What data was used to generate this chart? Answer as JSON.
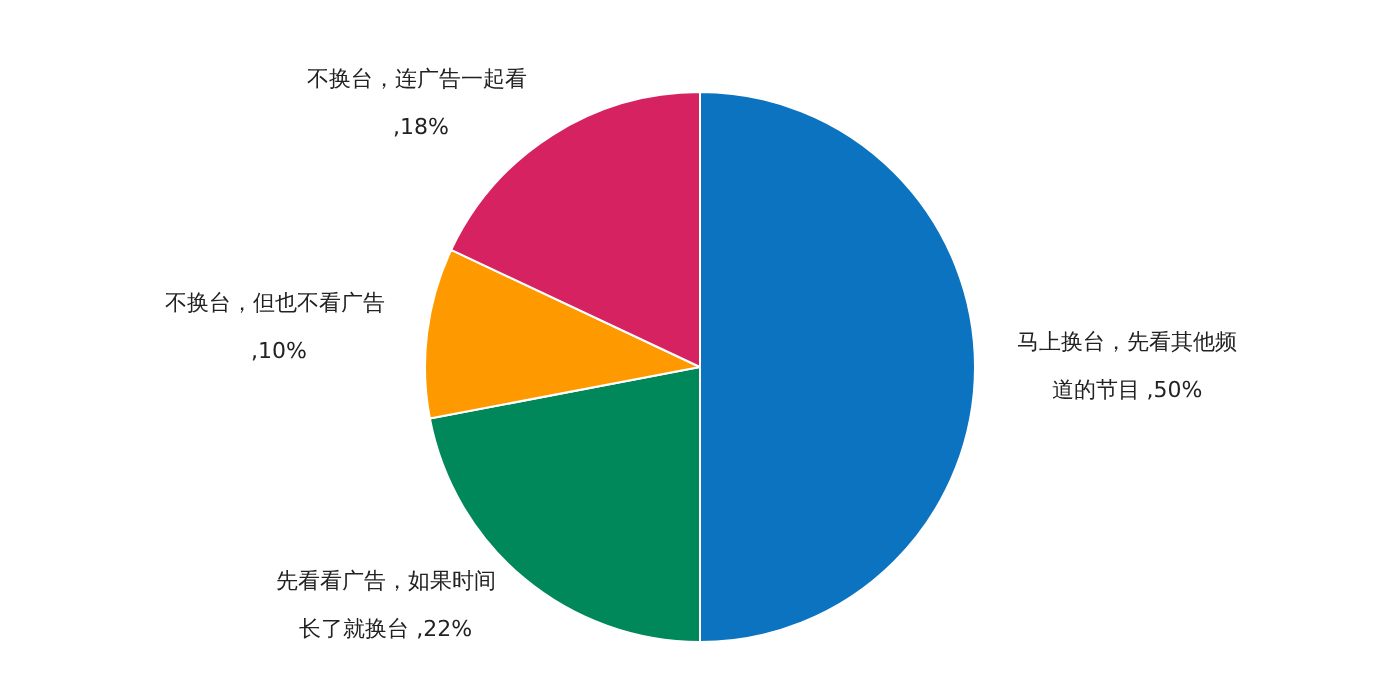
{
  "chart_data": {
    "type": "pie",
    "categories": [
      "马上换台，先看其他频道的节目",
      "先看看广告，如果时间长了就换台",
      "不换台，但也不看广告",
      "不换台，连广告一起看"
    ],
    "values": [
      50,
      22,
      10,
      18
    ],
    "colors": [
      "#0b73c0",
      "#00875a",
      "#ff9900",
      "#d62261"
    ],
    "value_labels": [
      ",50%",
      ",22%",
      ",10%",
      ",18%"
    ],
    "legend": false
  }
}
